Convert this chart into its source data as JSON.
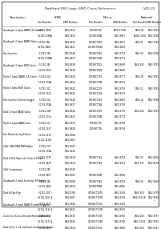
{
  "title": "RadHard MSI Logic SMD Cross Reference",
  "page_num": "V2D-39",
  "background_color": "#ffffff",
  "border_color": "#000000",
  "rows": [
    {
      "desc": "Quadruple 2-Input NAND (14 Gates)",
      "parts": [
        [
          "5-1741-3888",
          "5962-9651",
          "CD74HCT08",
          "5962-8771A",
          "5464-38",
          "5962-8751"
        ],
        [
          "5-1741-374NA",
          "5962-9651",
          "CD74HCT08B",
          "5962-8857",
          "54464-3764",
          "5962-8750"
        ]
      ]
    },
    {
      "desc": "Quadruple 2-Input NAND Gates",
      "parts": [
        [
          "5-1741-3NC",
          "5962-8614",
          "CD74HCT082",
          "5962-8672",
          "5464-3C",
          "5962-9742"
        ],
        [
          "5-1741-3NG2",
          "5962-8613",
          "CD74HCT082B",
          "5962-8692",
          "",
          ""
        ]
      ]
    },
    {
      "desc": "Hex Inverter",
      "parts": [
        [
          "5-1741-384",
          "5962-9516",
          "CD74HCT04S",
          "5962-9717",
          "5464-34",
          "5962-8768"
        ],
        [
          "5-1741-374NA",
          "5962-8617",
          "CD74HCT04B",
          "5962-8717",
          "",
          ""
        ]
      ]
    },
    {
      "desc": "Quadruple 2-Input NOR Gates",
      "parts": [
        [
          "5-1741-382",
          "5962-8618",
          "CD74HCT02S",
          "5962-8680",
          "5464-3C8",
          "5962-9751"
        ],
        [
          "5-1741-3102",
          "5962-8618",
          "CD74HCT02B",
          "5962-8680",
          "",
          ""
        ]
      ]
    },
    {
      "desc": "Triple 3-Input NAND (14 Gates)",
      "parts": [
        [
          "5-1741-838",
          "5962-8618",
          "CD74HCT10S",
          "5962-8777",
          "5464-38",
          "5962-9761"
        ],
        [
          "5-1741-374A",
          "5962-8613",
          "CD74HCT10B",
          "5962-8757",
          "",
          ""
        ]
      ]
    },
    {
      "desc": "Triple 3-Input NOR Gates",
      "parts": [
        [
          "5-1741-311",
          "5962-8622",
          "CD74HCT27S",
          "5962-8793",
          "5464-11",
          "5962-9751"
        ],
        [
          "5-1741-3122",
          "5962-8622",
          "CD74HCT27B",
          "5962-8773",
          "",
          ""
        ]
      ]
    },
    {
      "desc": "Hex Inverter Schmitt trigger",
      "parts": [
        [
          "5-1741-314",
          "5962-8626",
          "CD74HCT14S",
          "5962-8800",
          "5464-14",
          "5962-9756"
        ],
        [
          "5-1741-374A",
          "5962-8627",
          "CD74HCT14B",
          "5962-8750",
          "",
          ""
        ]
      ]
    },
    {
      "desc": "Dual 4-Input NAND Gates",
      "parts": [
        [
          "5-1741-3CB",
          "5962-8624",
          "CD74HCT20S",
          "5962-8775",
          "5464-2C8",
          "5962-9751"
        ],
        [
          "5-1741-3CGa",
          "5962-8627",
          "CD74HCT20B",
          "5962-8773",
          "",
          ""
        ]
      ]
    },
    {
      "desc": "Triple 2-Input NAND Gate",
      "parts": [
        [
          "5-1741-317",
          "5962-9675",
          "CD74HCT7S",
          "5962-8760",
          "",
          ""
        ],
        [
          "5-1741-3127",
          "5962-8628",
          "CD74HCT7B",
          "5962-8754",
          "",
          ""
        ]
      ]
    },
    {
      "desc": "Hex Noninverting Buffers",
      "parts": [
        [
          "5-1741-3119",
          "5962-8818",
          "",
          "",
          "",
          ""
        ],
        [
          "5-1741-3119a",
          "5962-8851",
          "",
          "",
          "",
          ""
        ]
      ]
    },
    {
      "desc": "4-Bit, MSB-MSB-MSB Adder",
      "parts": [
        [
          "5-1741-374",
          "5962-8917",
          "",
          "",
          "",
          ""
        ],
        [
          "5-1741-374A",
          "5962-8615",
          "",
          "",
          "",
          ""
        ]
      ]
    },
    {
      "desc": "Dual D-Flip Flops with Clear & Preset",
      "parts": [
        [
          "5-1741-3375",
          "5962-8619",
          "CD74HCT74S",
          "5962-8752",
          "5464-75",
          "5962-8834"
        ],
        [
          "5-1741-3425",
          "5962-8613",
          "CD74HCT74S",
          "5962-8513",
          "5464-375",
          "5962-8574"
        ]
      ]
    },
    {
      "desc": "4-Bit Comparator",
      "parts": [
        [
          "5-1741-385",
          "5962-8518",
          "",
          "",
          "",
          ""
        ],
        [
          "5-1741-3857",
          "5962-8857",
          "CD74HCT85B",
          "5962-8560",
          "",
          ""
        ]
      ]
    },
    {
      "desc": "Quadruple 2-Input Exclusive OR Gates",
      "parts": [
        [
          "5-1741-386",
          "5962-8818",
          "CD74HCT86S",
          "5962-8752",
          "5464-36",
          "5962-9916"
        ],
        [
          "5-1741-3866",
          "5962-8619",
          "CD74HCT86B",
          "5962-8866",
          "",
          ""
        ]
      ]
    },
    {
      "desc": "Dual JK Flip-Flop",
      "parts": [
        [
          "5-1741-3107",
          "5962-8760",
          "CD74HCT107S",
          "5962-9764",
          "5464-3C8",
          "5962-9779"
        ],
        [
          "5-1741-3107-4",
          "5962-8821",
          "CD74HCT107B",
          "5962-8764",
          "5464-3107-B",
          "5962-9554"
        ]
      ]
    },
    {
      "desc": "Quadruple 2-Input NAND Schmitt triggers",
      "parts": [
        [
          "5-1741-3132",
          "5962-8640",
          "CD74HCT132S",
          "5962-8752",
          "",
          ""
        ],
        [
          "5-1741-3132-2",
          "5962-8621",
          "CD74HCT132B",
          "5962-8570",
          "",
          ""
        ]
      ]
    },
    {
      "desc": "4-Line to 16-Line Decoder/Demultiplexers",
      "parts": [
        [
          "5-1741-3138",
          "5962-8630",
          "CD74HCT138S",
          "5962-8765",
          "5464-1C8",
          "5962-8757"
        ],
        [
          "5-1741-3137-4",
          "5962-8645",
          "CD74HCT138B",
          "5962-8756",
          "5464-137-B",
          "5962-8754"
        ]
      ]
    },
    {
      "desc": "Dual 16-to-1, 16 and Function/Demultiplexers",
      "parts": [
        [
          "5-1741-3150",
          "5962-8634",
          "CD74HCT150S",
          "5962-8860",
          "5464-3GS",
          "5962-8763"
        ]
      ]
    }
  ]
}
